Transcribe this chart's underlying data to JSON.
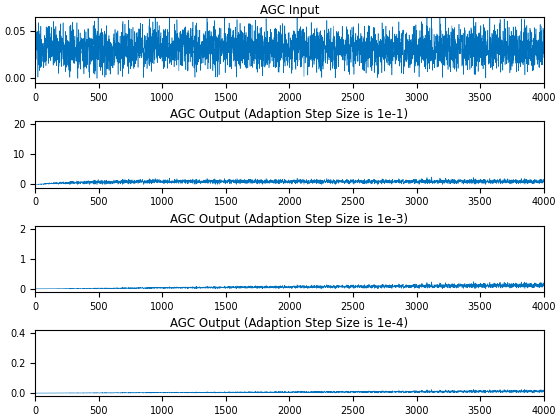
{
  "n_samples": 4000,
  "seed": 0,
  "titles": [
    "AGC Input",
    "AGC Output (Adaption Step Size is 1e-1)",
    "AGC Output (Adaption Step Size is 1e-3)",
    "AGC Output (Adaption Step Size is 1e-4)"
  ],
  "agc_step_sizes": [
    0.1,
    0.001,
    0.0001
  ],
  "line_color": "#0072BD",
  "line_width": 0.4,
  "xlim": [
    0,
    4000
  ],
  "ylim_input": [
    -0.005,
    0.065
  ],
  "ylim_agc1": [
    -1,
    21
  ],
  "ylim_agc2": [
    -0.1,
    2.1
  ],
  "ylim_agc3": [
    -0.02,
    0.42
  ],
  "yticks_input": [
    0,
    0.05
  ],
  "yticks_agc1": [
    0,
    10,
    20
  ],
  "yticks_agc2": [
    0,
    1,
    2
  ],
  "yticks_agc3": [
    0,
    0.2,
    0.4
  ],
  "xticks": [
    0,
    500,
    1000,
    1500,
    2000,
    2500,
    3000,
    3500,
    4000
  ],
  "title_fontsize": 8.5,
  "tick_fontsize": 7,
  "figsize": [
    5.6,
    4.2
  ],
  "dpi": 100
}
